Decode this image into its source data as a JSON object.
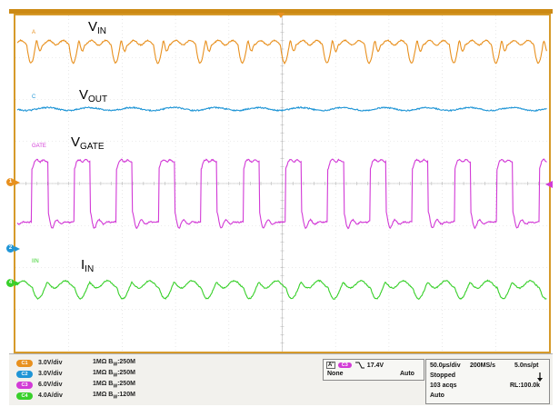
{
  "signals": {
    "vin": {
      "main": "V",
      "sub": "IN",
      "tag": "A"
    },
    "vout": {
      "main": "V",
      "sub": "OUT",
      "tag": "C"
    },
    "vgate": {
      "main": "V",
      "sub": "GATE",
      "tag": "GATE"
    },
    "iin": {
      "main": "I",
      "sub": "IN",
      "tag": "IIN"
    }
  },
  "colors": {
    "vin": "#e8901e",
    "vout": "#1f95d6",
    "vgate": "#d23ad6",
    "iin": "#38d02a",
    "frame": "#cc8a14"
  },
  "markers": {
    "ch1": "1",
    "ch2": "2",
    "ch4": "4"
  },
  "channels": [
    {
      "id": "C1",
      "scale": "3.0V/div",
      "impedance": "1MΩ",
      "bw": "250M",
      "color": "#e8901e"
    },
    {
      "id": "C2",
      "scale": "3.0V/div",
      "impedance": "1MΩ",
      "bw": "250M",
      "color": "#1f95d6"
    },
    {
      "id": "C3",
      "scale": "6.0V/div",
      "impedance": "1MΩ",
      "bw": "250M",
      "color": "#d23ad6"
    },
    {
      "id": "C4",
      "scale": "4.0A/div",
      "impedance": "1MΩ",
      "bw": "120M",
      "color": "#38d02a"
    }
  ],
  "bw_prefix": "B",
  "bw_sub": "W",
  "bw_sep": ":",
  "trigger": {
    "label": "A'",
    "channel": "C3",
    "level": "17.4V",
    "coupling": "None",
    "mode": "Auto"
  },
  "acquisition": {
    "timebase": "50.0µs/div",
    "sample_rate": "200MS/s",
    "resolution": "5.0ns/pt",
    "state": "Stopped",
    "acqs": "103 acqs",
    "record_length": "RL:100.0k",
    "mode": "Auto"
  }
}
